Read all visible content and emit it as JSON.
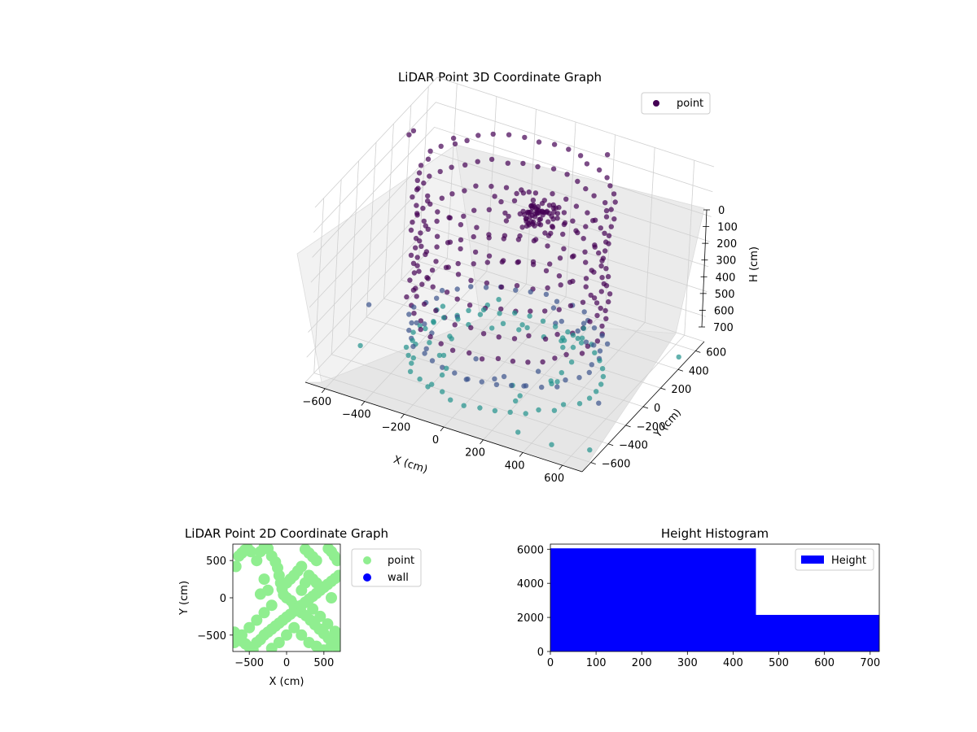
{
  "colors": {
    "point_3d_dark": "#440154",
    "point_3d_mid": "#3b528b",
    "point_3d_teal": "#21918c",
    "point_3d_light": "#5ec962",
    "point_2d": "#90ee90",
    "wall": "#0000ff",
    "histogram_bar": "#0000ff",
    "pane": "#f2f2f2"
  },
  "chart_data": [
    {
      "type": "scatter",
      "title": "LiDAR Point 3D Coordinate Graph",
      "xlabel": "X (cm)",
      "ylabel": "Y (cm)",
      "zlabel": "H (cm)",
      "xlim": [
        -700,
        700
      ],
      "ylim": [
        -700,
        700
      ],
      "zlim": [
        700,
        0
      ],
      "xticks": [
        "−600",
        "−400",
        "−200",
        "0",
        "200",
        "400",
        "600"
      ],
      "yticks": [
        "−600",
        "−400",
        "−200",
        "0",
        "200",
        "400",
        "600"
      ],
      "zticks": [
        "0",
        "100",
        "200",
        "300",
        "400",
        "500",
        "600",
        "700"
      ],
      "legend": [
        "point"
      ],
      "legend_position": "top-right",
      "grid": true,
      "series": [
        {
          "name": "point",
          "shape": "ring of LiDAR returns around the scanner, stacked in height",
          "ring_radius_cm": 450,
          "ring_heights_cm": [
            0,
            100,
            200,
            300,
            400,
            500,
            600,
            700
          ],
          "center_cluster_height_cm": 150,
          "outliers": [
            [
              -600,
              150,
              0
            ],
            [
              -640,
              300,
              50
            ],
            [
              -650,
              -100,
              600
            ],
            [
              -620,
              -250,
              700
            ],
            [
              350,
              -650,
              650
            ],
            [
              500,
              -600,
              680
            ],
            [
              650,
              -500,
              700
            ],
            [
              600,
              -300,
              600
            ],
            [
              -300,
              500,
              300
            ],
            [
              200,
              620,
              50
            ],
            [
              -500,
              450,
              100
            ],
            [
              700,
              400,
              650
            ]
          ]
        }
      ]
    },
    {
      "type": "scatter",
      "title": "LiDAR Point 2D Coordinate Graph",
      "xlabel": "X (cm)",
      "ylabel": "Y (cm)",
      "xlim": [
        -720,
        720
      ],
      "ylim": [
        -720,
        720
      ],
      "xticks": [
        "−500",
        "0",
        "500"
      ],
      "yticks": [
        "−500",
        "0",
        "500"
      ],
      "legend": [
        "point",
        "wall"
      ],
      "legend_position": "right",
      "series": [
        {
          "name": "point",
          "points": [
            [
              -680,
              420
            ],
            [
              -640,
              560
            ],
            [
              -600,
              600
            ],
            [
              -560,
              640
            ],
            [
              -520,
              660
            ],
            [
              -480,
              620
            ],
            [
              -400,
              500
            ],
            [
              -350,
              620
            ],
            [
              -300,
              680
            ],
            [
              -250,
              660
            ],
            [
              -200,
              560
            ],
            [
              -150,
              480
            ],
            [
              -120,
              400
            ],
            [
              -100,
              300
            ],
            [
              -80,
              200
            ],
            [
              -60,
              120
            ],
            [
              -40,
              40
            ],
            [
              0,
              0
            ],
            [
              60,
              -40
            ],
            [
              100,
              -100
            ],
            [
              150,
              -150
            ],
            [
              200,
              -200
            ],
            [
              260,
              -240
            ],
            [
              320,
              -300
            ],
            [
              380,
              -360
            ],
            [
              440,
              -420
            ],
            [
              500,
              -480
            ],
            [
              560,
              -540
            ],
            [
              620,
              -600
            ],
            [
              680,
              -660
            ],
            [
              -700,
              -460
            ],
            [
              -650,
              -520
            ],
            [
              -600,
              -580
            ],
            [
              -550,
              -620
            ],
            [
              -500,
              -660
            ],
            [
              -450,
              -700
            ],
            [
              -400,
              -600
            ],
            [
              -350,
              -560
            ],
            [
              -300,
              -500
            ],
            [
              -250,
              -460
            ],
            [
              -200,
              -420
            ],
            [
              -150,
              -380
            ],
            [
              -100,
              -340
            ],
            [
              -50,
              -300
            ],
            [
              0,
              -260
            ],
            [
              50,
              -220
            ],
            [
              100,
              -180
            ],
            [
              150,
              -140
            ],
            [
              200,
              -100
            ],
            [
              250,
              -60
            ],
            [
              300,
              -20
            ],
            [
              350,
              20
            ],
            [
              400,
              60
            ],
            [
              450,
              100
            ],
            [
              500,
              140
            ],
            [
              550,
              180
            ],
            [
              600,
              220
            ],
            [
              650,
              260
            ],
            [
              700,
              300
            ],
            [
              680,
              500
            ],
            [
              640,
              560
            ],
            [
              600,
              620
            ],
            [
              560,
              660
            ],
            [
              250,
              650
            ],
            [
              300,
              600
            ],
            [
              350,
              550
            ],
            [
              400,
              500
            ],
            [
              200,
              420
            ],
            [
              150,
              360
            ],
            [
              100,
              300
            ],
            [
              50,
              250
            ],
            [
              0,
              200
            ],
            [
              300,
              300
            ],
            [
              350,
              250
            ],
            [
              400,
              200
            ],
            [
              450,
              150
            ],
            [
              250,
              200
            ],
            [
              200,
              100
            ],
            [
              -200,
              -100
            ],
            [
              -300,
              -200
            ],
            [
              -400,
              -300
            ],
            [
              -500,
              -400
            ],
            [
              -600,
              -500
            ],
            [
              -700,
              -600
            ],
            [
              100,
              -400
            ],
            [
              200,
              -500
            ],
            [
              300,
              -600
            ],
            [
              400,
              -650
            ],
            [
              500,
              -700
            ],
            [
              600,
              -640
            ],
            [
              0,
              -500
            ],
            [
              -100,
              -600
            ],
            [
              -200,
              -680
            ],
            [
              350,
              -150
            ],
            [
              450,
              -250
            ],
            [
              550,
              -350
            ],
            [
              650,
              -450
            ],
            [
              700,
              -550
            ],
            [
              -250,
              100
            ],
            [
              -350,
              50
            ],
            [
              -300,
              250
            ],
            [
              600,
              0
            ]
          ]
        },
        {
          "name": "wall",
          "points": []
        }
      ]
    },
    {
      "type": "bar",
      "title": "Height Histogram",
      "legend": [
        "Height"
      ],
      "legend_position": "top-right",
      "xlim": [
        0,
        720
      ],
      "ylim": [
        0,
        6300
      ],
      "xticks": [
        "0",
        "100",
        "200",
        "300",
        "400",
        "500",
        "600",
        "700"
      ],
      "yticks": [
        "0",
        "2000",
        "4000",
        "6000"
      ],
      "series": [
        {
          "name": "Height",
          "bins": [
            {
              "from": 0,
              "to": 450,
              "count": 6050
            },
            {
              "from": 450,
              "to": 720,
              "count": 2150
            }
          ]
        }
      ]
    }
  ]
}
